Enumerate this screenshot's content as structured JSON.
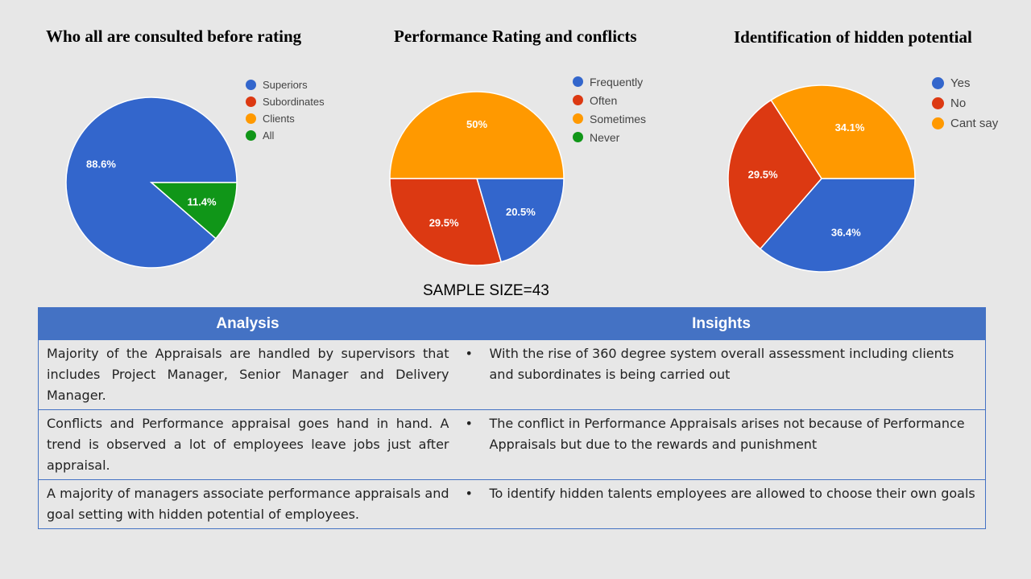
{
  "chart_data": [
    {
      "type": "pie",
      "title": "Who all are consulted before rating",
      "categories": [
        "Superiors",
        "Subordinates",
        "Clients",
        "All"
      ],
      "values": [
        88.6,
        0,
        0,
        11.4
      ],
      "labels": [
        "88.6%",
        "",
        "",
        "11.4%"
      ],
      "colors": [
        "#3366cc",
        "#dc3912",
        "#ff9900",
        "#109618"
      ],
      "legend": "right"
    },
    {
      "type": "pie",
      "title": "Performance Rating and conflicts",
      "categories": [
        "Frequently",
        "Often",
        "Sometimes",
        "Never"
      ],
      "values": [
        20.5,
        29.5,
        50,
        0
      ],
      "labels": [
        "20.5%",
        "29.5%",
        "50%",
        ""
      ],
      "colors": [
        "#3366cc",
        "#dc3912",
        "#ff9900",
        "#109618"
      ],
      "legend": "right"
    },
    {
      "type": "pie",
      "title": "Identification of hidden potential",
      "categories": [
        "Yes",
        "No",
        "Cant say"
      ],
      "values": [
        36.4,
        29.5,
        34.1
      ],
      "labels": [
        "36.4%",
        "29.5%",
        "34.1%"
      ],
      "colors": [
        "#3366cc",
        "#dc3912",
        "#ff9900"
      ],
      "legend": "right"
    }
  ],
  "sample_size": "SAMPLE SIZE=43",
  "table": {
    "headers": [
      "Analysis",
      "Insights"
    ],
    "bullet": "•",
    "rows": [
      {
        "analysis": "Majority of the Appraisals are handled by supervisors that includes Project Manager, Senior Manager and Delivery Manager.",
        "insight": "With the rise of 360 degree system overall assessment including clients and subordinates is being carried out"
      },
      {
        "analysis": "Conflicts and Performance appraisal goes hand in hand. A trend is observed a lot of employees leave jobs just after appraisal.",
        "insight": "The conflict in Performance Appraisals arises not because of Performance Appraisals but due to the rewards and punishment"
      },
      {
        "analysis": "A majority of managers associate performance appraisals and goal setting with hidden potential of employees.",
        "insight": "To identify hidden talents employees are allowed to choose their own goals"
      }
    ]
  }
}
